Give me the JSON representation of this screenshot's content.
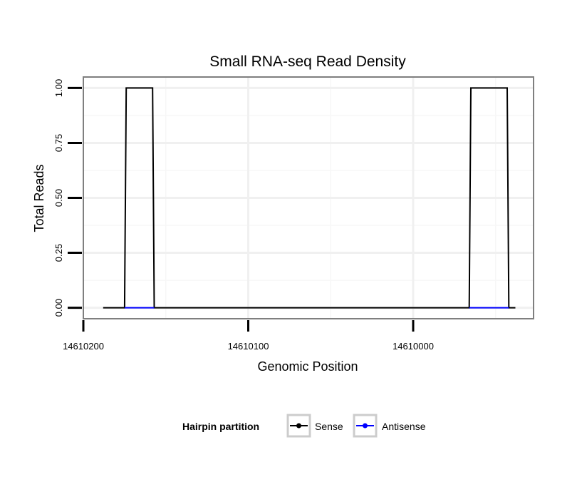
{
  "chart_data": {
    "type": "line",
    "title": "Small RNA-seq Read Density",
    "xlabel": "Genomic Position",
    "ylabel": "Total Reads",
    "x_reversed": true,
    "xlim": [
      14610200,
      14609927
    ],
    "ylim": [
      -0.05,
      1.05
    ],
    "x_ticks": [
      14610200,
      14610100,
      14610000
    ],
    "x_tick_labels": [
      "14610200",
      "14610100",
      "14610000"
    ],
    "y_ticks": [
      0,
      0.25,
      0.5,
      0.75,
      1
    ],
    "y_tick_labels": [
      "0.00",
      "0.25",
      "0.50",
      "0.75",
      "1.00"
    ],
    "grid": true,
    "legend": {
      "title": "Hairpin partition",
      "position": "bottom"
    },
    "series": [
      {
        "name": "Sense",
        "color": "#000000",
        "x": [
          14610188,
          14610175,
          14610174,
          14610158,
          14610157,
          14609966,
          14609965,
          14609943,
          14609942,
          14609938
        ],
        "y": [
          0,
          0,
          1,
          1,
          0,
          0,
          1,
          1,
          0,
          0
        ]
      },
      {
        "name": "Antisense",
        "color": "#0000ff",
        "x": [
          14610175,
          14610157,
          14609966,
          14609942
        ],
        "y": [
          0,
          0,
          0,
          0
        ],
        "segments": [
          [
            0,
            1
          ],
          [
            2,
            3
          ]
        ]
      }
    ]
  }
}
